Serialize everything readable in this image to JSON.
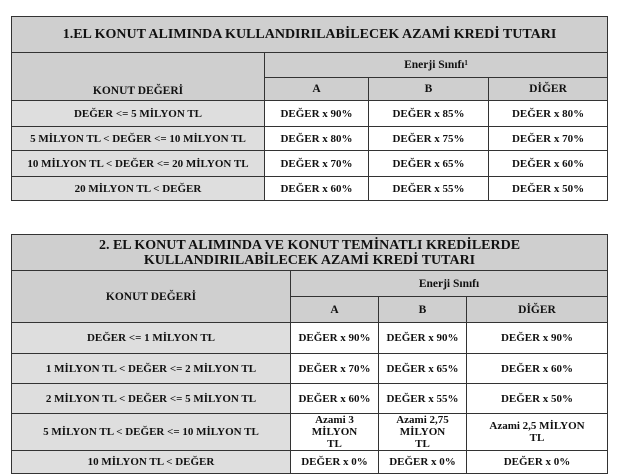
{
  "table1": {
    "title": "1.EL KONUT ALIMINDA KULLANDIRILABİLECEK AZAMİ KREDİ TUTARI",
    "row_header": "KONUT DEĞERİ",
    "group_header": "Enerji Sınıfı¹",
    "columns": [
      "A",
      "B",
      "DİĞER"
    ],
    "rows": [
      {
        "label": "DEĞER <= 5 MİLYON TL",
        "values": [
          "DEĞER x 90%",
          "DEĞER x 85%",
          "DEĞER x 80%"
        ]
      },
      {
        "label": "5 MİLYON TL < DEĞER <= 10 MİLYON TL",
        "values": [
          "DEĞER x 80%",
          "DEĞER x 75%",
          "DEĞER x 70%"
        ]
      },
      {
        "label": "10 MİLYON TL < DEĞER <= 20 MİLYON TL",
        "values": [
          "DEĞER x 70%",
          "DEĞER x 65%",
          "DEĞER x 60%"
        ]
      },
      {
        "label": "20 MİLYON TL < DEĞER",
        "values": [
          "DEĞER x 60%",
          "DEĞER x 55%",
          "DEĞER x 50%"
        ]
      }
    ]
  },
  "table2": {
    "title_line1": "2. EL KONUT ALIMINDA VE KONUT TEMİNATLI KREDİLERDE",
    "title_line2": "KULLANDIRILABİLECEK AZAMİ KREDİ TUTARI",
    "row_header": "KONUT DEĞERİ",
    "group_header": "Enerji Sınıfı",
    "columns": [
      "A",
      "B",
      "DİĞER"
    ],
    "rows": [
      {
        "label": "DEĞER <= 1 MİLYON TL",
        "values": [
          "DEĞER x 90%",
          "DEĞER x 90%",
          "DEĞER x 90%"
        ]
      },
      {
        "label": "1 MİLYON TL < DEĞER <= 2 MİLYON TL",
        "values": [
          "DEĞER x 70%",
          "DEĞER x 65%",
          "DEĞER x 60%"
        ]
      },
      {
        "label": "2 MİLYON TL < DEĞER <= 5 MİLYON TL",
        "values": [
          "DEĞER x 60%",
          "DEĞER x 55%",
          "DEĞER x 50%"
        ]
      },
      {
        "label": "5 MİLYON TL < DEĞER <= 10 MİLYON TL",
        "values": [
          "Azami 3 MİLYON TL",
          "Azami 2,75 MİLYON TL",
          "Azami 2,5 MİLYON TL"
        ]
      },
      {
        "label": "10 MİLYON TL < DEĞER",
        "values": [
          "DEĞER x 0%",
          "DEĞER x 0%",
          "DEĞER x 0%"
        ]
      }
    ]
  }
}
